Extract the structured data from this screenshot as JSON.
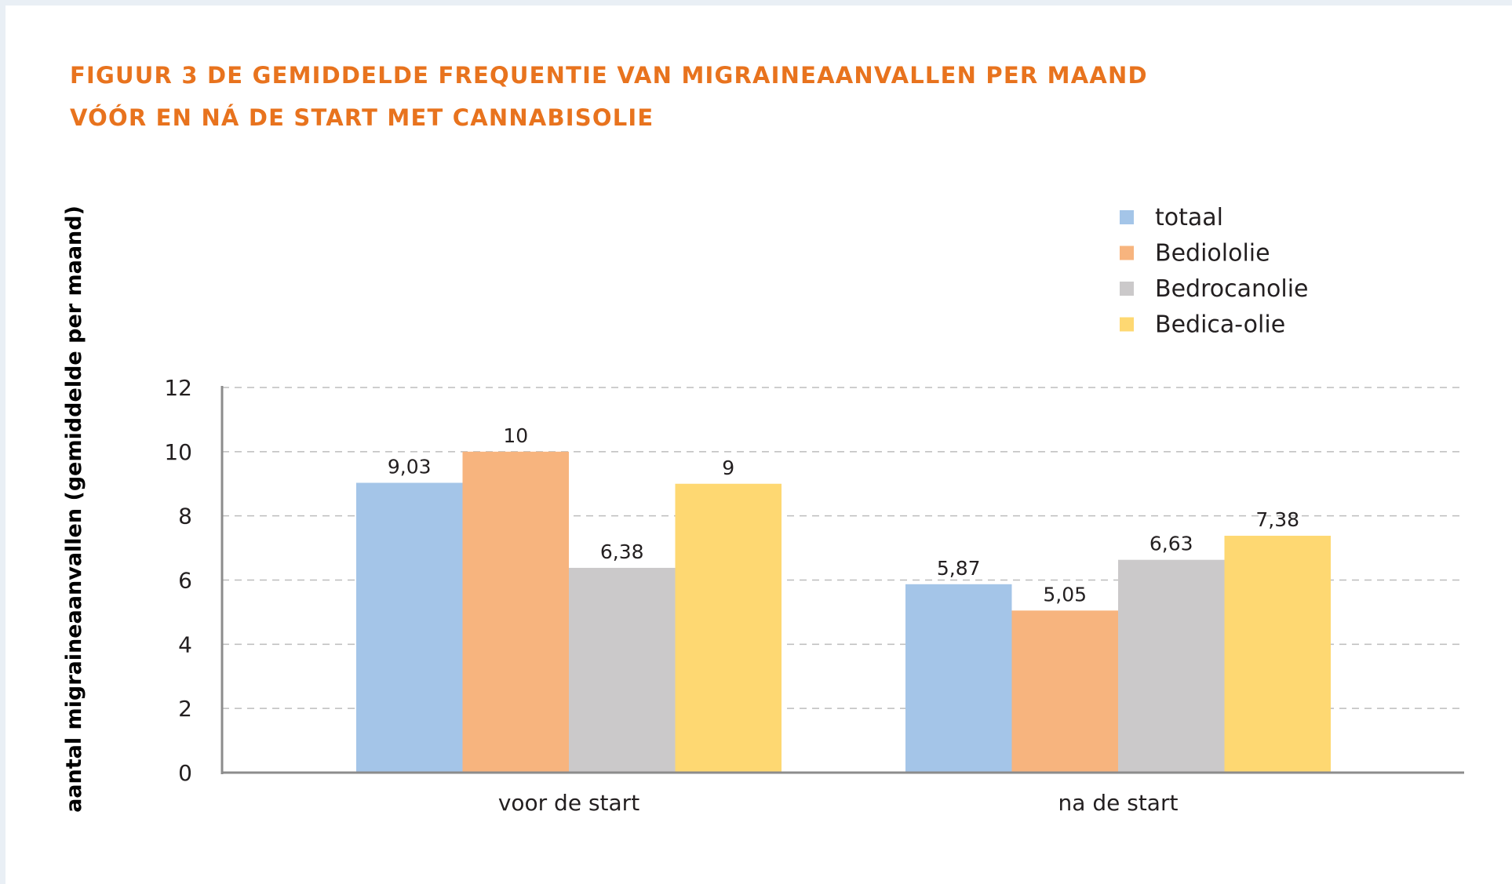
{
  "title": {
    "line1": "FIGUUR 3  DE GEMIDDELDE FREQUENTIE VAN MIGRAINEAANVALLEN PER MAAND",
    "line2": "VÓÓR EN NÁ DE START MET CANNABISOLIE"
  },
  "colors": {
    "title": "#e8731e",
    "grid": "#bdbdbd",
    "axis": "#8c8c8c"
  },
  "chart_data": {
    "type": "bar",
    "title": "FIGUUR 3  DE GEMIDDELDE FREQUENTIE VAN MIGRAINEAANVALLEN PER MAAND VÓÓR EN NÁ DE START MET CANNABISOLIE",
    "xlabel": "",
    "ylabel": "aantal migraineaanvallen (gemiddelde per maand)",
    "categories": [
      "voor de start",
      "na de start"
    ],
    "ylim": [
      0,
      12
    ],
    "yticks": [
      0,
      2,
      4,
      6,
      8,
      10,
      12
    ],
    "grid": true,
    "legend_position": "top-right",
    "series": [
      {
        "name": "totaal",
        "color": "#a4c5e8",
        "values": [
          9.03,
          5.87
        ],
        "labels": [
          "9,03",
          "5,87"
        ]
      },
      {
        "name": "Bediololie",
        "color": "#f7b47e",
        "values": [
          10,
          5.05
        ],
        "labels": [
          "10",
          "5,05"
        ]
      },
      {
        "name": "Bedrocanolie",
        "color": "#cbc9ca",
        "values": [
          6.38,
          6.63
        ],
        "labels": [
          "6,38",
          "6,63"
        ]
      },
      {
        "name": "Bedica-olie",
        "color": "#fed872",
        "values": [
          9,
          7.38
        ],
        "labels": [
          "9",
          "7,38"
        ]
      }
    ]
  }
}
